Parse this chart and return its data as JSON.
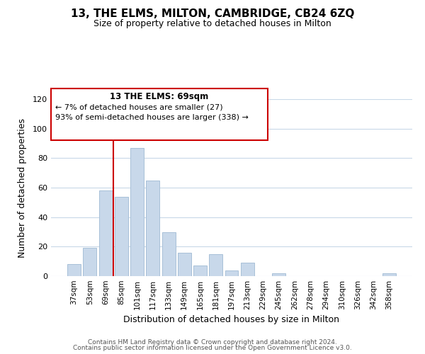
{
  "title": "13, THE ELMS, MILTON, CAMBRIDGE, CB24 6ZQ",
  "subtitle": "Size of property relative to detached houses in Milton",
  "xlabel": "Distribution of detached houses by size in Milton",
  "ylabel": "Number of detached properties",
  "bar_labels": [
    "37sqm",
    "53sqm",
    "69sqm",
    "85sqm",
    "101sqm",
    "117sqm",
    "133sqm",
    "149sqm",
    "165sqm",
    "181sqm",
    "197sqm",
    "213sqm",
    "229sqm",
    "245sqm",
    "262sqm",
    "278sqm",
    "294sqm",
    "310sqm",
    "326sqm",
    "342sqm",
    "358sqm"
  ],
  "bar_values": [
    8,
    19,
    58,
    54,
    87,
    65,
    30,
    16,
    7,
    15,
    4,
    9,
    0,
    2,
    0,
    0,
    0,
    0,
    0,
    0,
    2
  ],
  "bar_color": "#c8d8ea",
  "bar_edge_color": "#a8c0d8",
  "vline_index": 2,
  "vline_color": "#cc0000",
  "ylim": [
    0,
    120
  ],
  "yticks": [
    0,
    20,
    40,
    60,
    80,
    100,
    120
  ],
  "annotation_title": "13 THE ELMS: 69sqm",
  "annotation_line1": "← 7% of detached houses are smaller (27)",
  "annotation_line2": "93% of semi-detached houses are larger (338) →",
  "annotation_box_color": "#ffffff",
  "annotation_box_edge": "#cc0000",
  "footer1": "Contains HM Land Registry data © Crown copyright and database right 2024.",
  "footer2": "Contains public sector information licensed under the Open Government Licence v3.0.",
  "background_color": "#ffffff",
  "grid_color": "#c8d8e8"
}
